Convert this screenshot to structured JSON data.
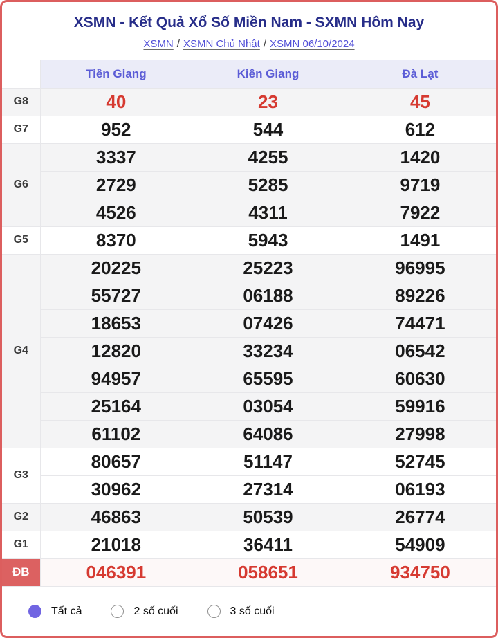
{
  "header": {
    "title": "XSMN - Kết Quả Xổ Số Miền Nam - SXMN Hôm Nay",
    "breadcrumb": [
      {
        "id": "xsmn",
        "label": "XSMN"
      },
      {
        "id": "xsmn-chu-nhat",
        "label": "XSMN Chủ Nhật"
      },
      {
        "id": "xsmn-06-10-2024",
        "label": "XSMN 06/10/2024"
      }
    ],
    "separator": "/"
  },
  "table": {
    "columns": [
      {
        "id": "tien-giang",
        "label": "Tiền Giang"
      },
      {
        "id": "kien-giang",
        "label": "Kiên Giang"
      },
      {
        "id": "da-lat",
        "label": "Đà Lạt"
      }
    ],
    "rows": [
      {
        "id": "g8",
        "label": "G8",
        "red": true,
        "special": false,
        "values_rows": [
          [
            "40",
            "23",
            "45"
          ]
        ]
      },
      {
        "id": "g7",
        "label": "G7",
        "red": false,
        "special": false,
        "values_rows": [
          [
            "952",
            "544",
            "612"
          ]
        ]
      },
      {
        "id": "g6",
        "label": "G6",
        "red": false,
        "special": false,
        "values_rows": [
          [
            "3337",
            "4255",
            "1420"
          ],
          [
            "2729",
            "5285",
            "9719"
          ],
          [
            "4526",
            "4311",
            "7922"
          ]
        ]
      },
      {
        "id": "g5",
        "label": "G5",
        "red": false,
        "special": false,
        "values_rows": [
          [
            "8370",
            "5943",
            "1491"
          ]
        ]
      },
      {
        "id": "g4",
        "label": "G4",
        "red": false,
        "special": false,
        "values_rows": [
          [
            "20225",
            "25223",
            "96995"
          ],
          [
            "55727",
            "06188",
            "89226"
          ],
          [
            "18653",
            "07426",
            "74471"
          ],
          [
            "12820",
            "33234",
            "06542"
          ],
          [
            "94957",
            "65595",
            "60630"
          ],
          [
            "25164",
            "03054",
            "59916"
          ],
          [
            "61102",
            "64086",
            "27998"
          ]
        ]
      },
      {
        "id": "g3",
        "label": "G3",
        "red": false,
        "special": false,
        "values_rows": [
          [
            "80657",
            "51147",
            "52745"
          ],
          [
            "30962",
            "27314",
            "06193"
          ]
        ]
      },
      {
        "id": "g2",
        "label": "G2",
        "red": false,
        "special": false,
        "values_rows": [
          [
            "46863",
            "50539",
            "26774"
          ]
        ]
      },
      {
        "id": "g1",
        "label": "G1",
        "red": false,
        "special": false,
        "values_rows": [
          [
            "21018",
            "36411",
            "54909"
          ]
        ]
      },
      {
        "id": "db",
        "label": "ĐB",
        "red": true,
        "special": true,
        "values_rows": [
          [
            "046391",
            "058651",
            "934750"
          ]
        ]
      }
    ]
  },
  "filters": {
    "options": [
      {
        "id": "all",
        "label": "Tất cả",
        "selected": true
      },
      {
        "id": "last-2",
        "label": "2 số cuối",
        "selected": false
      },
      {
        "id": "last-3",
        "label": "3 số cuối",
        "selected": false
      }
    ]
  },
  "colors": {
    "card_border": "#dc5e5e",
    "title": "#272d89",
    "breadcrumb_link": "#5250d8",
    "column_header_text": "#5b5cd6",
    "column_header_bg": "#ebecf8",
    "highlight_number": "#d63a31",
    "db_label_bg": "#dc6161",
    "shaded_row_bg": "#f4f4f5",
    "special_row_bg": "#fdf8f8",
    "radio_selected": "#7165e2"
  }
}
